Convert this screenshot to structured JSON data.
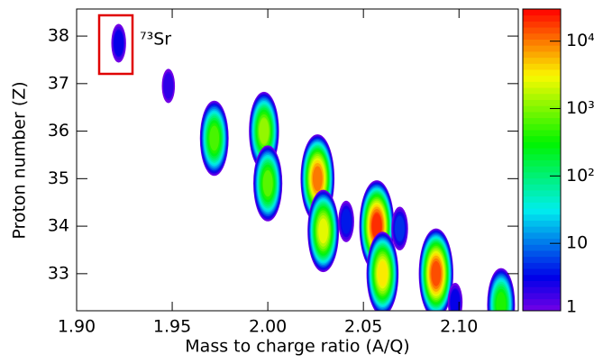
{
  "chart_data": {
    "type": "histogram2d",
    "x_label": "Mass to charge ratio (A/Q)",
    "y_label": "Proton number (Z)",
    "annotation": "⁷³Sr",
    "xlim": [
      1.9,
      2.131
    ],
    "ylim": [
      32.22,
      38.57
    ],
    "xticks": [
      {
        "value": 1.9,
        "label": "1.90"
      },
      1.95,
      {
        "value": 2,
        "label": "2.00"
      },
      2.05,
      {
        "value": 2.1,
        "label": "2.10"
      }
    ],
    "yticks": [
      33,
      34,
      35,
      36,
      37,
      38
    ],
    "zlim": [
      1,
      30000
    ],
    "zlog": true,
    "zticks": [
      1,
      10,
      {
        "value": 100,
        "label": "10²"
      },
      {
        "value": 1000,
        "label": "10³"
      },
      {
        "value": 10000,
        "label": "10⁴"
      }
    ],
    "clusters": {
      "x": [
        1.922,
        1.948,
        1.972,
        1.998,
        2.0,
        2.026,
        2.029,
        2.041,
        2.057,
        2.06,
        2.069,
        2.088,
        2.098,
        2.122
      ],
      "y": [
        37.85,
        36.95,
        35.85,
        36.0,
        34.9,
        35.0,
        33.9,
        34.1,
        34.0,
        33.0,
        33.95,
        33.0,
        32.4,
        32.35
      ],
      "counts": [
        3,
        2,
        600,
        1200,
        700,
        10000,
        2500,
        4,
        20000,
        3500,
        5,
        15000,
        3,
        400
      ]
    }
  }
}
